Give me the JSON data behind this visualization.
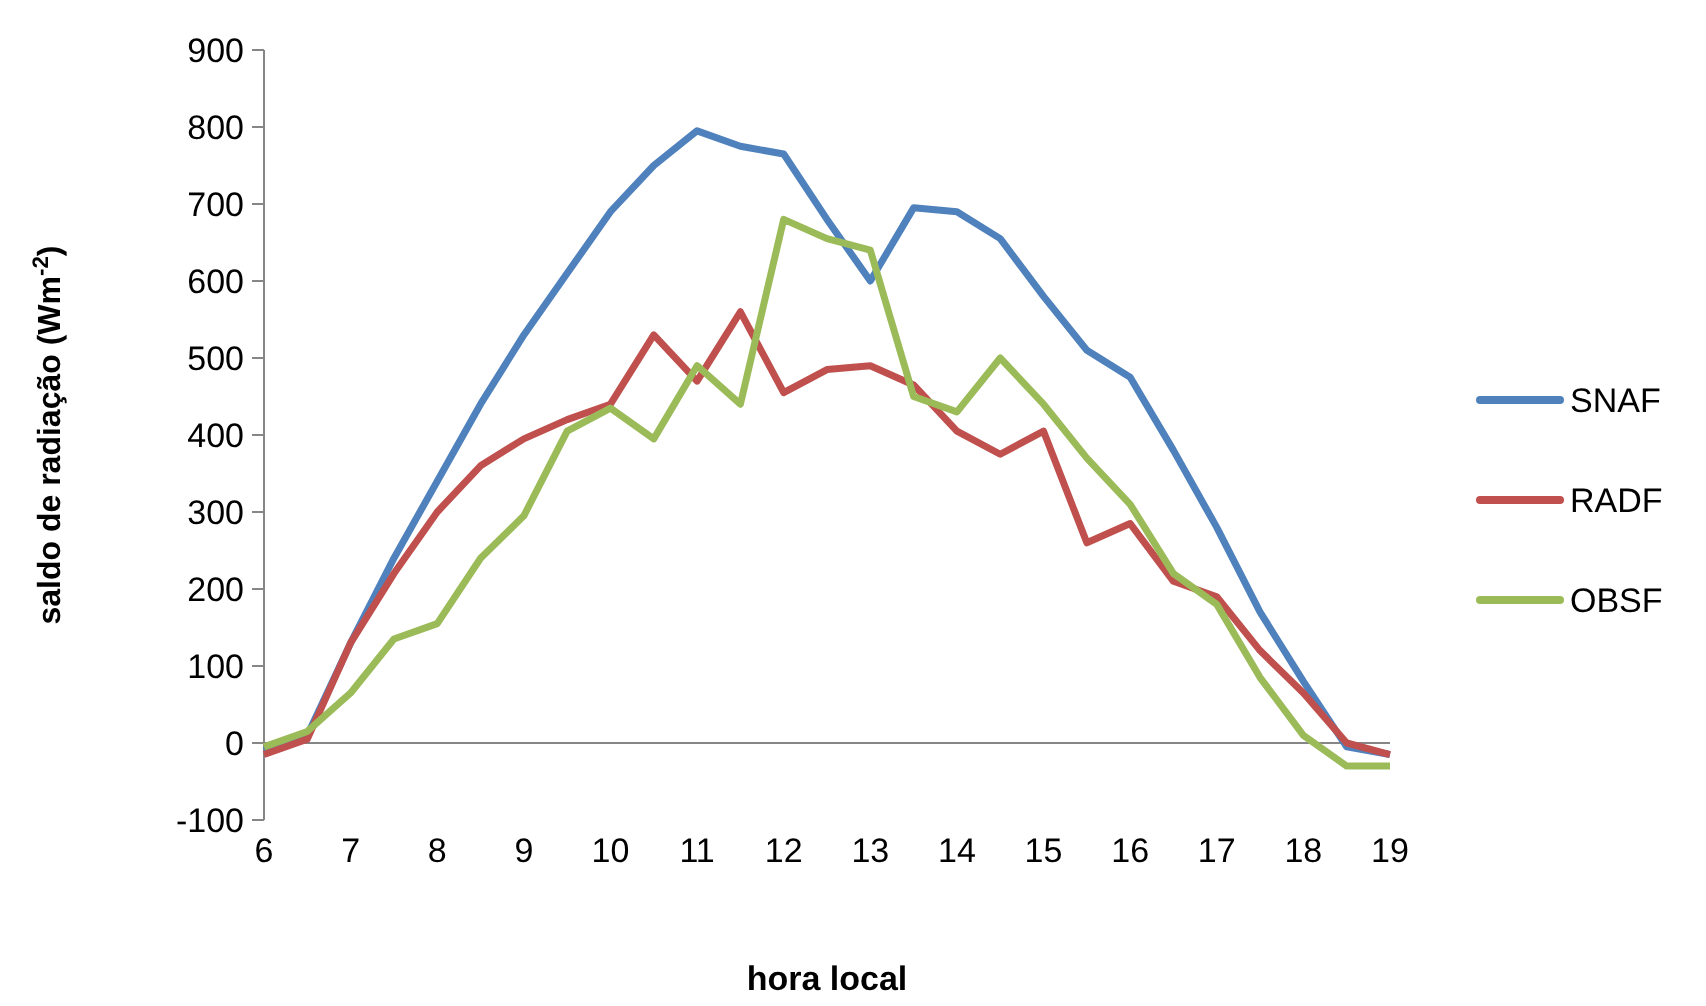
{
  "chart_data": {
    "type": "line",
    "xlabel": "hora local",
    "ylabel": "saldo de radiação (Wm$^{-2}$)",
    "x": [
      6,
      6.5,
      7,
      7.5,
      8,
      8.5,
      9,
      9.5,
      10,
      10.5,
      11,
      11.5,
      12,
      12.5,
      13,
      13.5,
      14,
      14.5,
      15,
      15.5,
      16,
      16.5,
      17,
      17.5,
      18,
      18.5,
      19
    ],
    "series": [
      {
        "name": "SNAF",
        "color": "#4f81bd",
        "values": [
          -10,
          10,
          130,
          240,
          340,
          440,
          530,
          610,
          690,
          750,
          795,
          775,
          765,
          680,
          600,
          695,
          690,
          655,
          580,
          510,
          475,
          380,
          280,
          170,
          80,
          -5,
          -15
        ]
      },
      {
        "name": "RADF",
        "color": "#c0504d",
        "values": [
          -15,
          5,
          130,
          220,
          300,
          360,
          395,
          420,
          440,
          530,
          470,
          560,
          455,
          485,
          490,
          465,
          405,
          375,
          405,
          260,
          285,
          210,
          190,
          120,
          65,
          0,
          -15
        ]
      },
      {
        "name": "OBSF",
        "color": "#9bbb59",
        "values": [
          -5,
          15,
          65,
          135,
          155,
          240,
          295,
          405,
          435,
          395,
          490,
          440,
          680,
          655,
          640,
          450,
          430,
          500,
          440,
          370,
          310,
          220,
          180,
          85,
          10,
          -30,
          -30
        ]
      }
    ],
    "xlim": [
      6,
      19
    ],
    "xticks": [
      6,
      7,
      8,
      9,
      10,
      11,
      12,
      13,
      14,
      15,
      16,
      17,
      18,
      19
    ],
    "ylim": [
      -100,
      900
    ],
    "yticks": [
      -100,
      0,
      100,
      200,
      300,
      400,
      500,
      600,
      700,
      800,
      900
    ],
    "legend": "right",
    "marker": "none",
    "line_style": "solid"
  }
}
